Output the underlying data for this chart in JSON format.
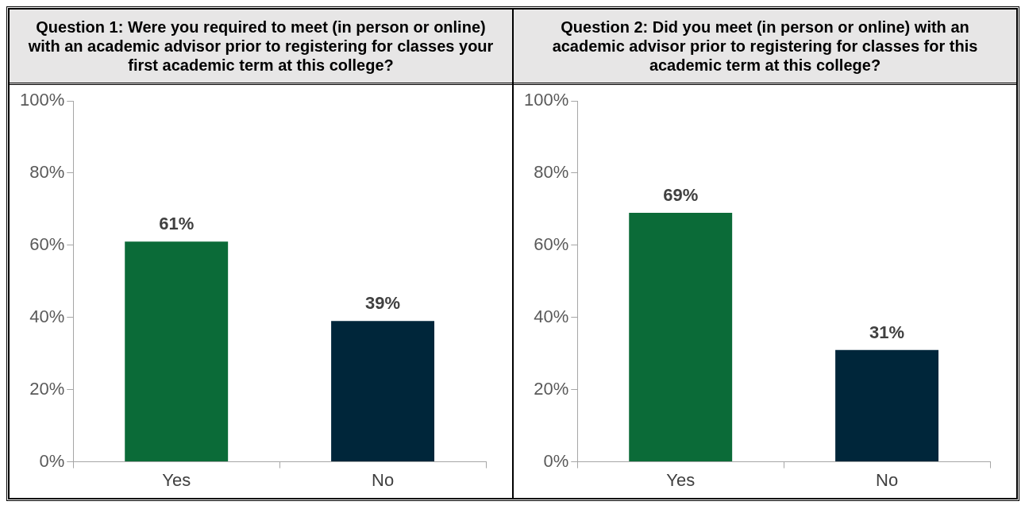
{
  "chart_data": [
    {
      "type": "bar",
      "title": "Question 1: Were you required to meet (in person or online) with an academic advisor prior to registering for classes your first academic term at this college?",
      "categories": [
        "Yes",
        "No"
      ],
      "values": [
        61,
        39
      ],
      "colors": [
        "#0b6b38",
        "#00263a"
      ],
      "value_labels": [
        "61%",
        "39%"
      ],
      "ylim": [
        0,
        100
      ],
      "yticks": [
        {
          "value": 0,
          "label": "0%"
        },
        {
          "value": 20,
          "label": "20%"
        },
        {
          "value": 40,
          "label": "40%"
        },
        {
          "value": 60,
          "label": "60%"
        },
        {
          "value": 80,
          "label": "80%"
        },
        {
          "value": 100,
          "label": "100%"
        }
      ],
      "legend": false
    },
    {
      "type": "bar",
      "title": "Question 2: Did you meet (in person or online) with an academic advisor prior to registering for classes for this academic term at this college?",
      "categories": [
        "Yes",
        "No"
      ],
      "values": [
        69,
        31
      ],
      "colors": [
        "#0b6b38",
        "#00263a"
      ],
      "value_labels": [
        "69%",
        "31%"
      ],
      "ylim": [
        0,
        100
      ],
      "yticks": [
        {
          "value": 0,
          "label": "0%"
        },
        {
          "value": 20,
          "label": "20%"
        },
        {
          "value": 40,
          "label": "40%"
        },
        {
          "value": 60,
          "label": "60%"
        },
        {
          "value": 80,
          "label": "80%"
        },
        {
          "value": 100,
          "label": "100%"
        }
      ],
      "legend": false
    }
  ]
}
